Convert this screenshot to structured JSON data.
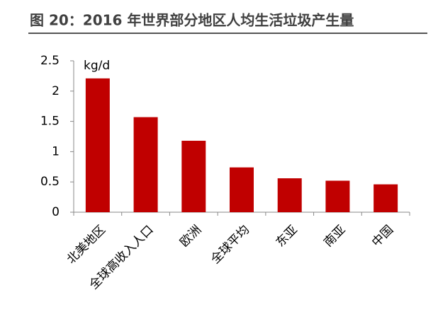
{
  "chart_data": {
    "type": "bar",
    "title": "图 20：2016 年世界部分地区人均生活垃圾产生量",
    "ylabel": "kg/d",
    "categories": [
      "北美地区",
      "全球高收入人口",
      "欧洲",
      "全球平均",
      "东亚",
      "南亚",
      "中国"
    ],
    "values": [
      2.21,
      1.57,
      1.18,
      0.74,
      0.56,
      0.52,
      0.46
    ],
    "color": "#c00000",
    "ylim": [
      0,
      2.5
    ],
    "yticks": [
      0,
      0.5,
      1,
      1.5,
      2,
      2.5
    ],
    "grid": false
  }
}
